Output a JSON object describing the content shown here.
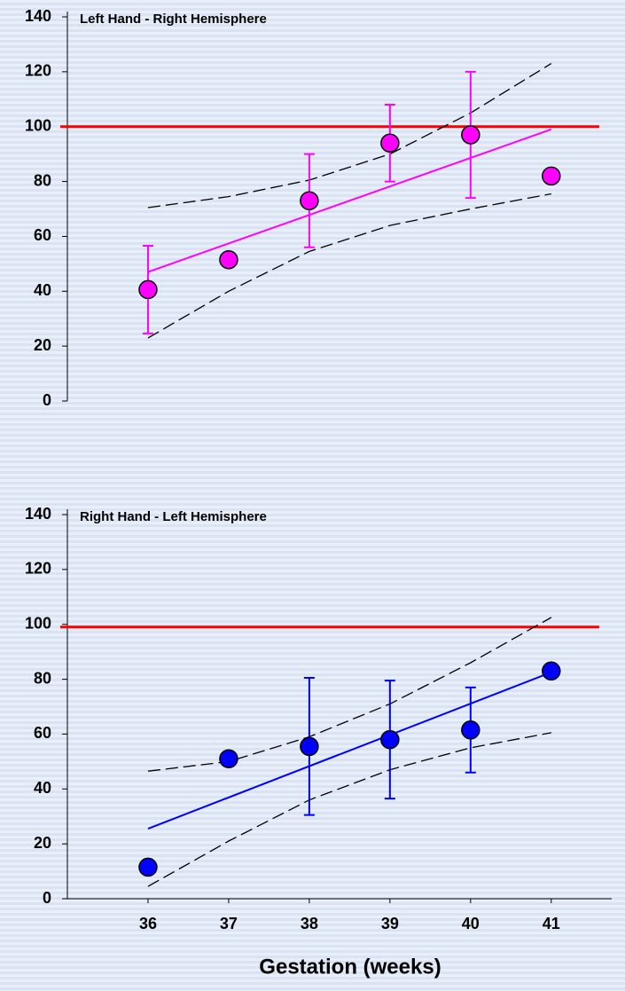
{
  "chart_data": [
    {
      "type": "scatter",
      "title": "Left Hand - Right Hemisphere",
      "x": [
        36,
        37,
        38,
        39,
        40,
        41
      ],
      "values": [
        40.6,
        51.5,
        73,
        94,
        97,
        82
      ],
      "errors": [
        16,
        null,
        17,
        14,
        23,
        null
      ],
      "color": "#ff00ff",
      "fit": {
        "x": [
          36,
          41
        ],
        "values": [
          47,
          99
        ]
      },
      "band_upper": [
        70.5,
        74.5,
        80.5,
        90,
        105,
        123
      ],
      "band_lower": [
        23,
        40,
        54.5,
        64,
        70,
        75.5
      ],
      "reference_line": 100,
      "reference_color": "#ff0000",
      "xlim": [
        35,
        41.75
      ],
      "ylim": [
        0,
        140
      ],
      "yticks": [
        0,
        20,
        40,
        60,
        80,
        100,
        120,
        140
      ]
    },
    {
      "type": "scatter",
      "title": "Right Hand - Left Hemisphere",
      "x": [
        36,
        37,
        38,
        39,
        40,
        41
      ],
      "values": [
        11.5,
        51,
        55.5,
        58,
        61.5,
        83
      ],
      "errors": [
        null,
        null,
        25,
        21.5,
        15.5,
        null
      ],
      "color": "#0000ff",
      "fit": {
        "x": [
          36,
          41
        ],
        "values": [
          25.5,
          82.5
        ]
      },
      "band_upper": [
        46.5,
        50,
        59,
        71,
        86,
        102.5
      ],
      "band_lower": [
        4.5,
        21,
        36,
        47,
        55,
        60.5
      ],
      "reference_line": 99,
      "reference_color": "#ff0000",
      "xlim": [
        35,
        41.75
      ],
      "ylim": [
        0,
        140
      ],
      "yticks": [
        0,
        20,
        40,
        60,
        80,
        100,
        120,
        140
      ],
      "xticks": [
        36,
        37,
        38,
        39,
        40,
        41
      ],
      "xlabel": "Gestation (weeks)"
    }
  ]
}
